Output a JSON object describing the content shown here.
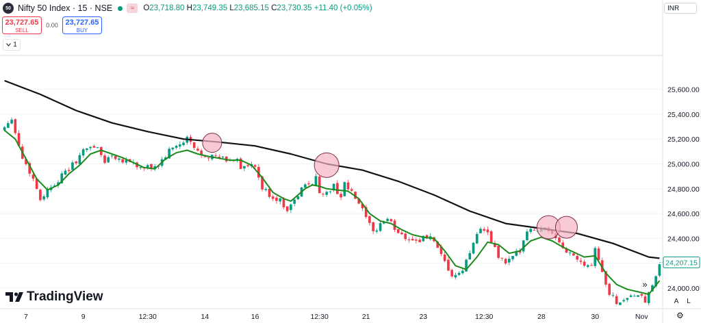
{
  "header": {
    "symbol_badge": "50",
    "title": "Nifty 50 Index · 15 · NSE",
    "pill": "≈",
    "ohlc": {
      "o_label": "O",
      "o_value": "23,718.80",
      "h_label": "H",
      "h_value": "23,749.35",
      "l_label": "L",
      "l_value": "23,685.15",
      "c_label": "C",
      "c_value": "23,730.35",
      "change": "+11.40 (+0.05%)"
    }
  },
  "trade": {
    "sell_price": "23,727.65",
    "sell_label": "SELL",
    "spread": "0.00",
    "buy_price": "23,727.65",
    "buy_label": "BUY",
    "lot_value": "1",
    "lot_icon": "chevron-down-icon"
  },
  "currency": "INR",
  "logo_text": "TradingView",
  "controls": {
    "scroll_icon": "»",
    "auto_label": "A",
    "log_label": "L",
    "settings_icon": "⚙"
  },
  "colors": {
    "up": "#089981",
    "down": "#f23645",
    "ema_fast": "#1a8a1a",
    "ema_slow": "#111111",
    "circle_fill": "#f5b3c3",
    "price_tag": "#089981"
  },
  "chart_data": {
    "type": "candlestick",
    "ylim": [
      23850,
      25650
    ],
    "y_ticks": [
      24000,
      24200,
      24400,
      24600,
      24800,
      25000,
      25200,
      25400,
      25600
    ],
    "y_tick_labels": [
      "24,000.00",
      "24,200.00",
      "24,400.00",
      "24,600.00",
      "24,800.00",
      "25,000.00",
      "25,200.00",
      "25,400.00",
      "25,600.00"
    ],
    "x_tick_labels": [
      "7",
      "9",
      "12:30",
      "14",
      "16",
      "12:30",
      "21",
      "23",
      "12:30",
      "28",
      "30",
      "Nov"
    ],
    "last_price": 24207.15,
    "last_price_label": "24,207.15",
    "price_path": [
      [
        0,
        25300
      ],
      [
        2,
        25380
      ],
      [
        3,
        25250
      ],
      [
        5,
        25050
      ],
      [
        8,
        24880
      ],
      [
        10,
        24720
      ],
      [
        13,
        24820
      ],
      [
        16,
        24900
      ],
      [
        19,
        24990
      ],
      [
        22,
        25100
      ],
      [
        24,
        25150
      ],
      [
        26,
        25120
      ],
      [
        28,
        25020
      ],
      [
        30,
        25080
      ],
      [
        32,
        25040
      ],
      [
        34,
        25030
      ],
      [
        36,
        25010
      ],
      [
        38,
        24960
      ],
      [
        41,
        24970
      ],
      [
        43,
        24990
      ],
      [
        46,
        25100
      ],
      [
        48,
        25150
      ],
      [
        50,
        25160
      ],
      [
        51,
        25210
      ],
      [
        53,
        25120
      ],
      [
        55,
        25080
      ],
      [
        57,
        25070
      ],
      [
        59,
        25050
      ],
      [
        61,
        25040
      ],
      [
        63,
        25020
      ],
      [
        65,
        25050
      ],
      [
        66,
        24970
      ],
      [
        68,
        24980
      ],
      [
        70,
        24970
      ],
      [
        72,
        24800
      ],
      [
        74,
        24750
      ],
      [
        77,
        24700
      ],
      [
        79,
        24640
      ],
      [
        81,
        24700
      ],
      [
        83,
        24800
      ],
      [
        85,
        24840
      ],
      [
        87,
        24880
      ],
      [
        88,
        24780
      ],
      [
        90,
        24760
      ],
      [
        92,
        24820
      ],
      [
        94,
        24740
      ],
      [
        95,
        24840
      ],
      [
        97,
        24760
      ],
      [
        99,
        24680
      ],
      [
        101,
        24560
      ],
      [
        103,
        24440
      ],
      [
        105,
        24520
      ],
      [
        107,
        24560
      ],
      [
        109,
        24480
      ],
      [
        111,
        24430
      ],
      [
        113,
        24400
      ],
      [
        115,
        24380
      ],
      [
        117,
        24400
      ],
      [
        119,
        24420
      ],
      [
        121,
        24300
      ],
      [
        123,
        24200
      ],
      [
        125,
        24100
      ],
      [
        127,
        24100
      ],
      [
        128,
        24150
      ],
      [
        130,
        24280
      ],
      [
        132,
        24460
      ],
      [
        134,
        24470
      ],
      [
        136,
        24380
      ],
      [
        138,
        24250
      ],
      [
        140,
        24200
      ],
      [
        142,
        24240
      ],
      [
        144,
        24310
      ],
      [
        146,
        24480
      ],
      [
        148,
        24460
      ],
      [
        150,
        24490
      ],
      [
        152,
        24470
      ],
      [
        154,
        24380
      ],
      [
        156,
        24320
      ],
      [
        158,
        24280
      ],
      [
        160,
        24250
      ],
      [
        162,
        24200
      ],
      [
        164,
        24190
      ],
      [
        165,
        24340
      ],
      [
        167,
        24120
      ],
      [
        169,
        23960
      ],
      [
        171,
        23890
      ],
      [
        173,
        23900
      ],
      [
        175,
        23950
      ],
      [
        177,
        23930
      ],
      [
        179,
        23900
      ],
      [
        181,
        24000
      ],
      [
        183,
        24200
      ]
    ],
    "series": [
      {
        "name": "",
        "color": "#1a8a1a",
        "points": [
          [
            0,
            25270
          ],
          [
            3,
            25200
          ],
          [
            6,
            25040
          ],
          [
            9,
            24880
          ],
          [
            12,
            24790
          ],
          [
            15,
            24830
          ],
          [
            18,
            24920
          ],
          [
            21,
            24990
          ],
          [
            24,
            25080
          ],
          [
            27,
            25110
          ],
          [
            30,
            25080
          ],
          [
            33,
            25050
          ],
          [
            36,
            25010
          ],
          [
            39,
            24970
          ],
          [
            42,
            24960
          ],
          [
            45,
            25040
          ],
          [
            48,
            25090
          ],
          [
            51,
            25110
          ],
          [
            54,
            25080
          ],
          [
            57,
            25060
          ],
          [
            60,
            25045
          ],
          [
            63,
            25030
          ],
          [
            66,
            25030
          ],
          [
            69,
            24990
          ],
          [
            72,
            24890
          ],
          [
            75,
            24770
          ],
          [
            78,
            24720
          ],
          [
            80,
            24700
          ],
          [
            82,
            24750
          ],
          [
            84,
            24800
          ],
          [
            86,
            24830
          ],
          [
            88,
            24820
          ],
          [
            90,
            24800
          ],
          [
            93,
            24790
          ],
          [
            96,
            24780
          ],
          [
            99,
            24720
          ],
          [
            102,
            24600
          ],
          [
            105,
            24540
          ],
          [
            108,
            24520
          ],
          [
            111,
            24470
          ],
          [
            114,
            24430
          ],
          [
            117,
            24410
          ],
          [
            120,
            24400
          ],
          [
            123,
            24300
          ],
          [
            126,
            24180
          ],
          [
            129,
            24150
          ],
          [
            132,
            24250
          ],
          [
            135,
            24370
          ],
          [
            138,
            24350
          ],
          [
            141,
            24280
          ],
          [
            144,
            24300
          ],
          [
            147,
            24380
          ],
          [
            150,
            24410
          ],
          [
            153,
            24380
          ],
          [
            156,
            24330
          ],
          [
            159,
            24290
          ],
          [
            162,
            24250
          ],
          [
            165,
            24260
          ],
          [
            168,
            24120
          ],
          [
            171,
            24030
          ],
          [
            174,
            23990
          ],
          [
            177,
            23970
          ],
          [
            180,
            23950
          ],
          [
            183,
            24060
          ]
        ]
      },
      {
        "name": "",
        "color": "#111111",
        "points": [
          [
            0,
            25670
          ],
          [
            10,
            25560
          ],
          [
            20,
            25430
          ],
          [
            30,
            25330
          ],
          [
            40,
            25260
          ],
          [
            50,
            25200
          ],
          [
            60,
            25175
          ],
          [
            70,
            25145
          ],
          [
            80,
            25080
          ],
          [
            90,
            25000
          ],
          [
            100,
            24950
          ],
          [
            110,
            24860
          ],
          [
            120,
            24750
          ],
          [
            130,
            24620
          ],
          [
            140,
            24520
          ],
          [
            150,
            24480
          ],
          [
            160,
            24440
          ],
          [
            170,
            24360
          ],
          [
            180,
            24250
          ],
          [
            183,
            24240
          ]
        ]
      }
    ],
    "highlights": [
      {
        "x": 58,
        "y": 25170
      },
      {
        "x": 90,
        "y": 24990
      },
      {
        "x": 152,
        "y": 24490
      },
      {
        "x": 157,
        "y": 24490
      }
    ]
  }
}
